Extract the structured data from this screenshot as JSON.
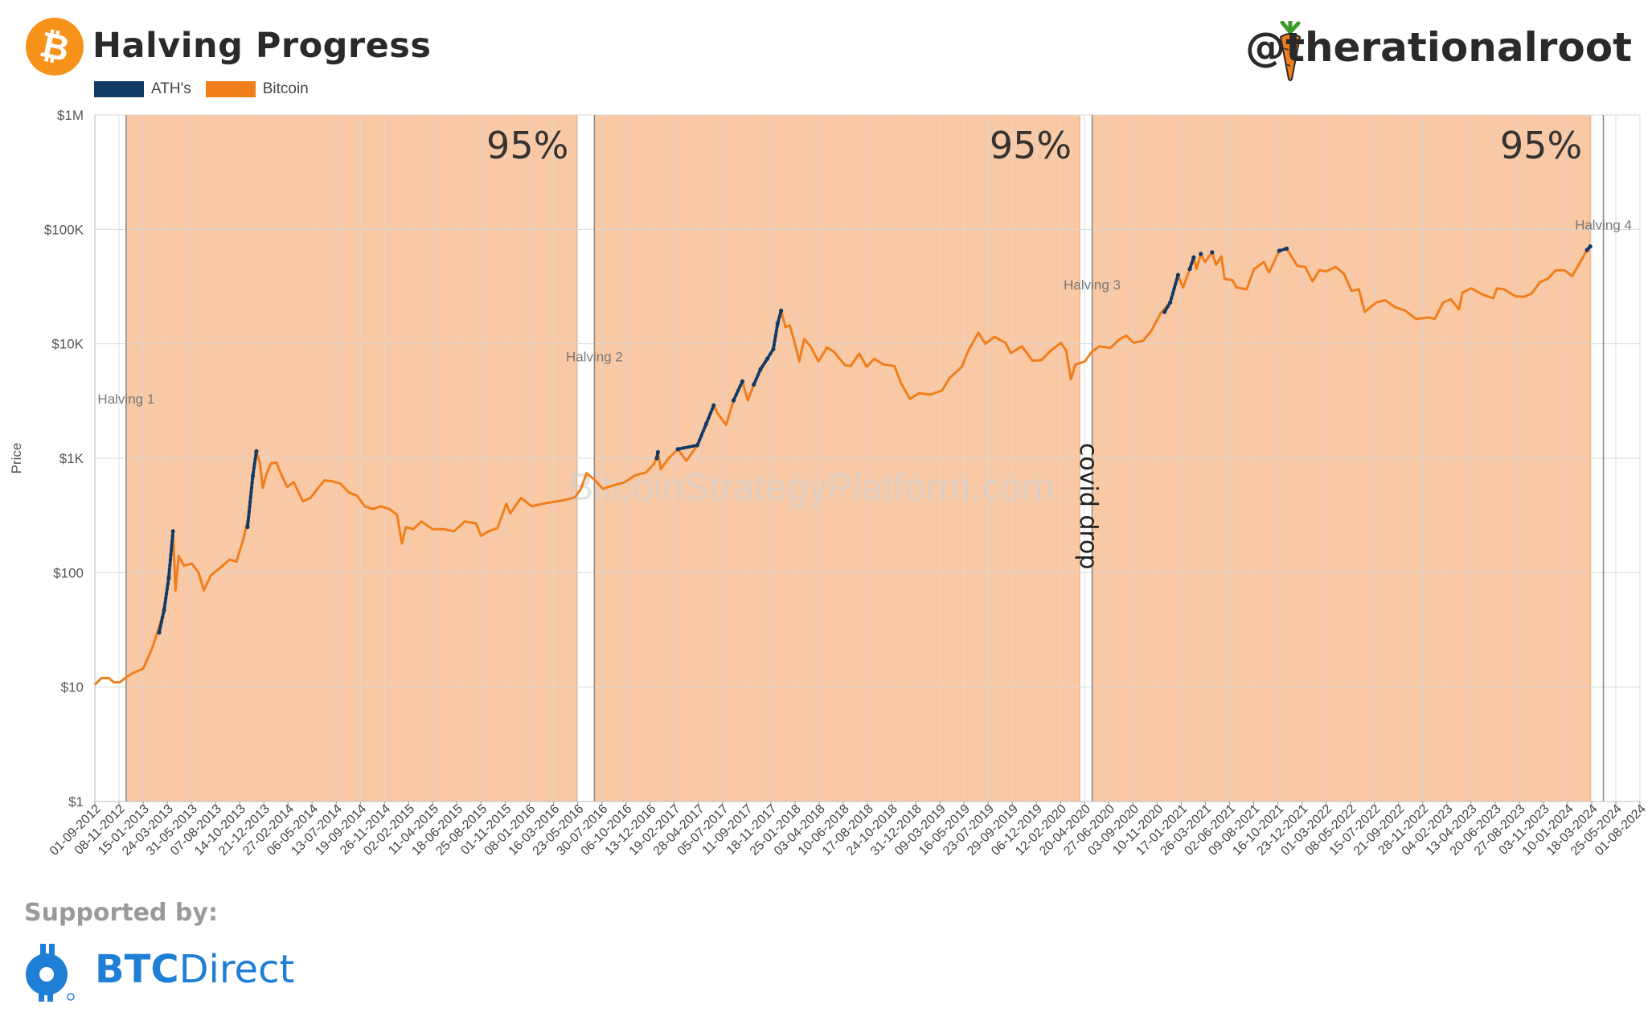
{
  "header": {
    "title": "Halving Progress",
    "handle": "@therationalroot",
    "logo_icon": "bitcoin-icon",
    "handle_icon": "carrot-icon"
  },
  "legend": [
    {
      "label": "ATH's",
      "color": "#123a66"
    },
    {
      "label": "Bitcoin",
      "color": "#f07f1b"
    }
  ],
  "footer": {
    "supported_label": "Supported by:",
    "sponsor_bold": "BTC",
    "sponsor_rest": "Direct",
    "sponsor_icon": "btc-direct-icon"
  },
  "chart_data": {
    "type": "line",
    "ylabel": "Price",
    "yscale": "log",
    "ylim": [
      1,
      1000000
    ],
    "y_ticks": [
      "$1",
      "$10",
      "$100",
      "$1K",
      "$10K",
      "$100K",
      "$1M"
    ],
    "x_ticks": [
      "01-09-2012",
      "08-11-2012",
      "15-01-2013",
      "24-03-2013",
      "31-05-2013",
      "07-08-2013",
      "14-10-2013",
      "21-12-2013",
      "27-02-2014",
      "06-05-2014",
      "13-07-2014",
      "19-09-2014",
      "26-11-2014",
      "02-02-2015",
      "11-04-2015",
      "18-06-2015",
      "25-08-2015",
      "01-11-2015",
      "08-01-2016",
      "16-03-2016",
      "23-05-2016",
      "30-07-2016",
      "06-10-2016",
      "13-12-2016",
      "19-02-2017",
      "28-04-2017",
      "05-07-2017",
      "11-09-2017",
      "18-11-2017",
      "25-01-2018",
      "03-04-2018",
      "10-06-2018",
      "17-08-2018",
      "24-10-2018",
      "31-12-2018",
      "09-03-2019",
      "16-05-2019",
      "23-07-2019",
      "29-09-2019",
      "06-12-2019",
      "12-02-2020",
      "20-04-2020",
      "27-06-2020",
      "03-09-2020",
      "10-11-2020",
      "17-01-2021",
      "26-03-2021",
      "02-06-2021",
      "09-08-2021",
      "16-10-2021",
      "23-12-2021",
      "01-03-2022",
      "08-05-2022",
      "15-07-2022",
      "21-09-2022",
      "28-11-2022",
      "04-02-2023",
      "13-04-2023",
      "20-06-2023",
      "27-08-2023",
      "03-11-2023",
      "10-01-2024",
      "18-03-2024",
      "25-05-2024",
      "01-08-2024"
    ],
    "watermark": "BitcoinStrategyPlatform.com",
    "halvings": [
      {
        "label": "Halving 1",
        "date": "2012-11-28",
        "label_y": 3000
      },
      {
        "label": "Halving 2",
        "date": "2016-07-09",
        "label_y": 7000
      },
      {
        "label": "Halving 3",
        "date": "2020-05-11",
        "label_y": 30000
      },
      {
        "label": "Halving 4",
        "date": "2024-04-20",
        "label_y": 100000
      }
    ],
    "progress_bands": [
      {
        "start": "2012-11-28",
        "end": "2016-05-20",
        "label": "95%",
        "color": "#f5a66d"
      },
      {
        "start": "2016-07-09",
        "end": "2020-04-06",
        "label": "95%",
        "color": "#f5a66d"
      },
      {
        "start": "2020-05-11",
        "end": "2024-03-14",
        "label": "95%",
        "color": "#f5a66d"
      }
    ],
    "annotations": [
      {
        "text": "covid drop",
        "date": "2020-03-12",
        "y": 9500
      }
    ],
    "series": [
      {
        "name": "Bitcoin",
        "color": "#f07f1b",
        "points": [
          [
            "2012-09-01",
            10.5
          ],
          [
            "2012-09-20",
            12
          ],
          [
            "2012-10-10",
            12
          ],
          [
            "2012-10-25",
            11
          ],
          [
            "2012-11-10",
            11
          ],
          [
            "2012-11-28",
            12.2
          ],
          [
            "2012-12-20",
            13.4
          ],
          [
            "2013-01-15",
            14.5
          ],
          [
            "2013-02-10",
            22
          ],
          [
            "2013-02-28",
            33
          ],
          [
            "2013-03-15",
            47
          ],
          [
            "2013-03-28",
            90
          ],
          [
            "2013-04-09",
            230
          ],
          [
            "2013-04-16",
            70
          ],
          [
            "2013-04-25",
            140
          ],
          [
            "2013-05-10",
            115
          ],
          [
            "2013-06-01",
            120
          ],
          [
            "2013-06-20",
            100
          ],
          [
            "2013-07-05",
            70
          ],
          [
            "2013-07-25",
            95
          ],
          [
            "2013-08-20",
            110
          ],
          [
            "2013-09-15",
            130
          ],
          [
            "2013-10-05",
            125
          ],
          [
            "2013-10-25",
            200
          ],
          [
            "2013-11-10",
            330
          ],
          [
            "2013-11-20",
            700
          ],
          [
            "2013-11-30",
            1150
          ],
          [
            "2013-12-10",
            900
          ],
          [
            "2013-12-18",
            550
          ],
          [
            "2013-12-28",
            720
          ],
          [
            "2014-01-10",
            900
          ],
          [
            "2014-01-25",
            920
          ],
          [
            "2014-02-10",
            700
          ],
          [
            "2014-02-25",
            560
          ],
          [
            "2014-03-15",
            620
          ],
          [
            "2014-04-10",
            420
          ],
          [
            "2014-05-01",
            450
          ],
          [
            "2014-05-25",
            560
          ],
          [
            "2014-06-10",
            640
          ],
          [
            "2014-07-01",
            630
          ],
          [
            "2014-07-25",
            600
          ],
          [
            "2014-08-18",
            500
          ],
          [
            "2014-09-10",
            470
          ],
          [
            "2014-10-01",
            380
          ],
          [
            "2014-10-25",
            360
          ],
          [
            "2014-11-15",
            380
          ],
          [
            "2014-12-10",
            360
          ],
          [
            "2014-12-31",
            320
          ],
          [
            "2015-01-14",
            180
          ],
          [
            "2015-01-25",
            250
          ],
          [
            "2015-02-15",
            240
          ],
          [
            "2015-03-10",
            280
          ],
          [
            "2015-04-10",
            240
          ],
          [
            "2015-05-10",
            240
          ],
          [
            "2015-06-10",
            230
          ],
          [
            "2015-07-10",
            280
          ],
          [
            "2015-08-10",
            270
          ],
          [
            "2015-08-25",
            210
          ],
          [
            "2015-09-15",
            230
          ],
          [
            "2015-10-10",
            245
          ],
          [
            "2015-11-04",
            400
          ],
          [
            "2015-11-15",
            330
          ],
          [
            "2015-12-15",
            450
          ],
          [
            "2016-01-15",
            380
          ],
          [
            "2016-02-15",
            400
          ],
          [
            "2016-03-15",
            415
          ],
          [
            "2016-04-15",
            430
          ],
          [
            "2016-05-15",
            455
          ],
          [
            "2016-06-01",
            540
          ],
          [
            "2016-06-17",
            740
          ],
          [
            "2016-07-09",
            650
          ],
          [
            "2016-08-02",
            540
          ],
          [
            "2016-09-01",
            580
          ],
          [
            "2016-10-01",
            615
          ],
          [
            "2016-11-01",
            710
          ],
          [
            "2016-12-01",
            750
          ],
          [
            "2016-12-25",
            900
          ],
          [
            "2017-01-04",
            1130
          ],
          [
            "2017-01-12",
            800
          ],
          [
            "2017-02-01",
            980
          ],
          [
            "2017-03-01",
            1200
          ],
          [
            "2017-03-25",
            950
          ],
          [
            "2017-04-25",
            1300
          ],
          [
            "2017-05-20",
            2000
          ],
          [
            "2017-06-10",
            2900
          ],
          [
            "2017-06-20",
            2500
          ],
          [
            "2017-07-15",
            1950
          ],
          [
            "2017-08-05",
            3200
          ],
          [
            "2017-08-30",
            4700
          ],
          [
            "2017-09-14",
            3200
          ],
          [
            "2017-10-01",
            4400
          ],
          [
            "2017-10-20",
            6000
          ],
          [
            "2017-11-08",
            7400
          ],
          [
            "2017-11-25",
            9000
          ],
          [
            "2017-12-07",
            15000
          ],
          [
            "2017-12-17",
            19500
          ],
          [
            "2017-12-29",
            14000
          ],
          [
            "2018-01-10",
            14500
          ],
          [
            "2018-01-20",
            11500
          ],
          [
            "2018-02-06",
            7000
          ],
          [
            "2018-02-20",
            11000
          ],
          [
            "2018-03-10",
            9500
          ],
          [
            "2018-04-01",
            7000
          ],
          [
            "2018-04-25",
            9300
          ],
          [
            "2018-05-15",
            8500
          ],
          [
            "2018-06-15",
            6500
          ],
          [
            "2018-07-01",
            6400
          ],
          [
            "2018-07-25",
            8200
          ],
          [
            "2018-08-15",
            6300
          ],
          [
            "2018-09-05",
            7400
          ],
          [
            "2018-10-01",
            6600
          ],
          [
            "2018-11-01",
            6400
          ],
          [
            "2018-11-20",
            4500
          ],
          [
            "2018-12-15",
            3300
          ],
          [
            "2019-01-10",
            3700
          ],
          [
            "2019-02-10",
            3600
          ],
          [
            "2019-03-15",
            3900
          ],
          [
            "2019-04-05",
            5000
          ],
          [
            "2019-05-10",
            6300
          ],
          [
            "2019-05-28",
            8700
          ],
          [
            "2019-06-26",
            12500
          ],
          [
            "2019-07-15",
            10000
          ],
          [
            "2019-08-10",
            11500
          ],
          [
            "2019-09-10",
            10200
          ],
          [
            "2019-09-25",
            8300
          ],
          [
            "2019-10-26",
            9500
          ],
          [
            "2019-11-25",
            7100
          ],
          [
            "2019-12-20",
            7200
          ],
          [
            "2020-01-15",
            8700
          ],
          [
            "2020-02-13",
            10200
          ],
          [
            "2020-02-28",
            8700
          ],
          [
            "2020-03-12",
            4900
          ],
          [
            "2020-03-25",
            6600
          ],
          [
            "2020-04-20",
            7000
          ],
          [
            "2020-05-11",
            8600
          ],
          [
            "2020-06-01",
            9500
          ],
          [
            "2020-07-01",
            9200
          ],
          [
            "2020-07-28",
            11000
          ],
          [
            "2020-08-15",
            11800
          ],
          [
            "2020-09-05",
            10200
          ],
          [
            "2020-10-01",
            10600
          ],
          [
            "2020-10-25",
            13000
          ],
          [
            "2020-11-20",
            18500
          ],
          [
            "2020-12-17",
            23000
          ],
          [
            "2021-01-08",
            40000
          ],
          [
            "2021-01-22",
            31000
          ],
          [
            "2021-02-10",
            45000
          ],
          [
            "2021-02-21",
            57000
          ],
          [
            "2021-03-01",
            45000
          ],
          [
            "2021-03-13",
            61000
          ],
          [
            "2021-03-25",
            52000
          ],
          [
            "2021-04-14",
            63000
          ],
          [
            "2021-04-25",
            49000
          ],
          [
            "2021-05-10",
            58000
          ],
          [
            "2021-05-19",
            37000
          ],
          [
            "2021-06-10",
            36000
          ],
          [
            "2021-06-22",
            31000
          ],
          [
            "2021-07-20",
            30000
          ],
          [
            "2021-08-10",
            45000
          ],
          [
            "2021-09-07",
            52000
          ],
          [
            "2021-09-21",
            42000
          ],
          [
            "2021-10-20",
            65000
          ],
          [
            "2021-11-10",
            68000
          ],
          [
            "2021-11-28",
            55000
          ],
          [
            "2021-12-10",
            48000
          ],
          [
            "2022-01-01",
            47000
          ],
          [
            "2022-01-22",
            35000
          ],
          [
            "2022-02-10",
            44000
          ],
          [
            "2022-03-01",
            43000
          ],
          [
            "2022-03-28",
            47000
          ],
          [
            "2022-04-20",
            41000
          ],
          [
            "2022-05-12",
            29000
          ],
          [
            "2022-06-01",
            30000
          ],
          [
            "2022-06-18",
            19000
          ],
          [
            "2022-07-20",
            23000
          ],
          [
            "2022-08-15",
            24000
          ],
          [
            "2022-09-10",
            21000
          ],
          [
            "2022-10-10",
            19500
          ],
          [
            "2022-11-09",
            16500
          ],
          [
            "2022-12-15",
            17000
          ],
          [
            "2023-01-01",
            16500
          ],
          [
            "2023-01-25",
            23000
          ],
          [
            "2023-02-15",
            24500
          ],
          [
            "2023-03-10",
            20000
          ],
          [
            "2023-03-20",
            28000
          ],
          [
            "2023-04-14",
            30500
          ],
          [
            "2023-05-15",
            27000
          ],
          [
            "2023-06-15",
            25000
          ],
          [
            "2023-06-25",
            30500
          ],
          [
            "2023-07-15",
            30000
          ],
          [
            "2023-08-17",
            26000
          ],
          [
            "2023-09-10",
            25800
          ],
          [
            "2023-10-01",
            27500
          ],
          [
            "2023-10-24",
            34500
          ],
          [
            "2023-11-15",
            37000
          ],
          [
            "2023-12-08",
            44000
          ],
          [
            "2024-01-01",
            44000
          ],
          [
            "2024-01-23",
            39000
          ],
          [
            "2024-02-15",
            52000
          ],
          [
            "2024-03-05",
            66000
          ],
          [
            "2024-03-14",
            71000
          ]
        ]
      },
      {
        "name": "ATH's",
        "color": "#123a66",
        "segments": [
          [
            [
              "2013-03-01",
              30
            ],
            [
              "2013-03-15",
              47
            ],
            [
              "2013-03-28",
              90
            ],
            [
              "2013-04-09",
              230
            ]
          ],
          [
            [
              "2013-11-05",
              250
            ],
            [
              "2013-11-20",
              700
            ],
            [
              "2013-11-30",
              1150
            ]
          ],
          [
            [
              "2017-01-01",
              1000
            ],
            [
              "2017-01-04",
              1130
            ]
          ],
          [
            [
              "2017-03-01",
              1200
            ],
            [
              "2017-04-25",
              1300
            ],
            [
              "2017-05-20",
              2000
            ],
            [
              "2017-06-10",
              2900
            ]
          ],
          [
            [
              "2017-08-05",
              3200
            ],
            [
              "2017-08-30",
              4700
            ]
          ],
          [
            [
              "2017-10-01",
              4400
            ],
            [
              "2017-10-20",
              6000
            ],
            [
              "2017-11-08",
              7400
            ],
            [
              "2017-11-25",
              9000
            ],
            [
              "2017-12-07",
              15000
            ],
            [
              "2017-12-17",
              19500
            ]
          ],
          [
            [
              "2020-12-01",
              19000
            ],
            [
              "2020-12-17",
              23000
            ],
            [
              "2021-01-08",
              40000
            ]
          ],
          [
            [
              "2021-02-10",
              45000
            ],
            [
              "2021-02-21",
              57000
            ]
          ],
          [
            [
              "2021-03-13",
              61000
            ]
          ],
          [
            [
              "2021-04-14",
              63000
            ]
          ],
          [
            [
              "2021-10-20",
              65000
            ],
            [
              "2021-11-10",
              68000
            ]
          ],
          [
            [
              "2024-03-05",
              66000
            ],
            [
              "2024-03-14",
              71000
            ]
          ]
        ]
      }
    ]
  }
}
